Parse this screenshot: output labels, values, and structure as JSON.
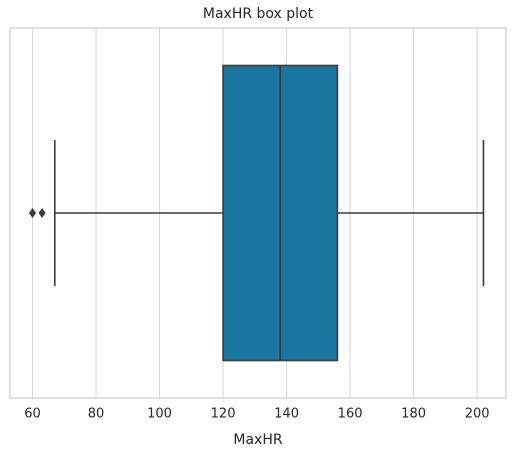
{
  "chart_data": {
    "type": "box",
    "title": "MaxHR box plot",
    "xlabel": "MaxHR",
    "xlim": [
      52.9,
      209.1
    ],
    "xticks": [
      60,
      80,
      100,
      120,
      140,
      160,
      180,
      200
    ],
    "grid": true,
    "color": "#1a76a0",
    "boxes": [
      {
        "whisker_low": 67,
        "q1": 120,
        "median": 138,
        "q3": 156,
        "whisker_high": 202,
        "outliers": [
          60,
          63
        ]
      }
    ]
  }
}
